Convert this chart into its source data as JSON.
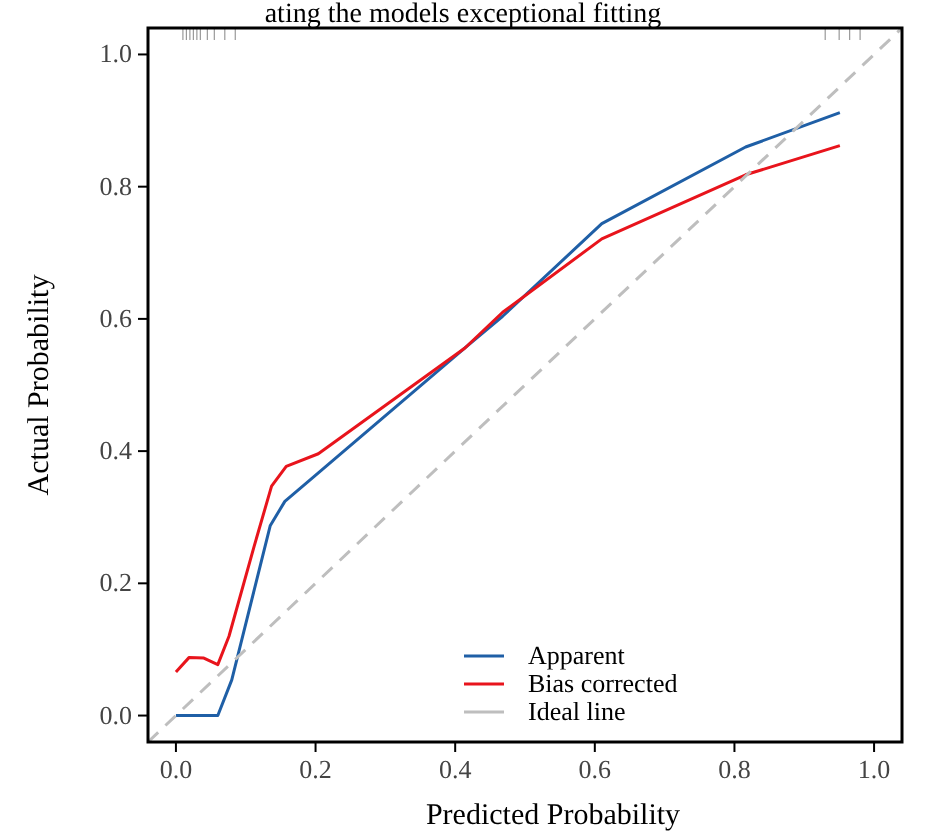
{
  "chart_data": {
    "type": "line",
    "title": "ating the models exceptional fitting",
    "xlabel": "Predicted Probability",
    "ylabel": "Actual Probability",
    "xlim": [
      -0.04,
      1.04
    ],
    "ylim": [
      -0.04,
      1.04
    ],
    "xticks": [
      {
        "value": 0,
        "label": "0.0"
      },
      0.2,
      0.4,
      0.6,
      0.8,
      {
        "value": 1,
        "label": "1.0"
      }
    ],
    "yticks": [
      {
        "value": 0,
        "label": "0.0"
      },
      0.2,
      0.4,
      0.6,
      0.8,
      {
        "value": 1,
        "label": "1.0"
      }
    ],
    "grid": false,
    "legend": "bottom right",
    "line_style": "solid",
    "series": [
      {
        "name": "Apparent",
        "color": "#1f5fa6",
        "x": [
          0,
          0.06,
          0.08,
          0.135,
          0.156,
          0.204,
          0.414,
          0.468,
          0.61,
          0.816,
          0.951
        ],
        "values": [
          0,
          0,
          0.054,
          0.287,
          0.324,
          0.367,
          0.556,
          0.604,
          0.744,
          0.86,
          0.912
        ]
      },
      {
        "name": "Bias corrected",
        "color": "#e8141c",
        "x": [
          0,
          0.019,
          0.04,
          0.06,
          0.076,
          0.112,
          0.137,
          0.158,
          0.204,
          0.414,
          0.468,
          0.61,
          0.816,
          0.951
        ],
        "values": [
          0.066,
          0.088,
          0.087,
          0.077,
          0.12,
          0.256,
          0.347,
          0.377,
          0.396,
          0.556,
          0.61,
          0.721,
          0.818,
          0.862
        ]
      },
      {
        "name": "Ideal line",
        "color": "#bebebe",
        "line_style": "dashed",
        "x": [
          -0.04,
          1.04
        ],
        "values": [
          -0.04,
          1.04
        ]
      }
    ]
  }
}
